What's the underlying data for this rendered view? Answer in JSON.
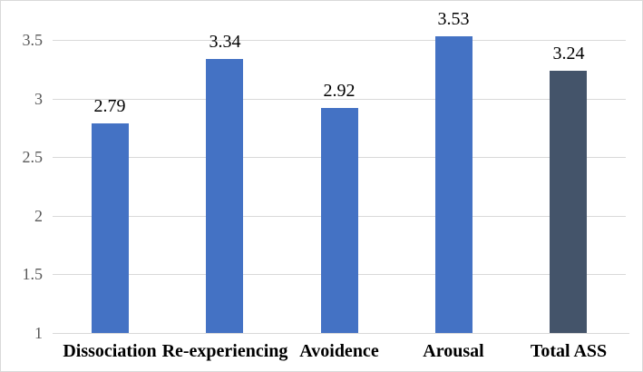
{
  "chart_data": {
    "type": "bar",
    "categories": [
      "Dissociation",
      "Re-experiencing",
      "Avoidence",
      "Arousal",
      "Total ASS"
    ],
    "values": [
      2.79,
      3.34,
      2.92,
      3.53,
      3.24
    ],
    "data_labels": [
      "2.79",
      "3.34",
      "2.92",
      "3.53",
      "3.24"
    ],
    "bar_colors": [
      "#4472C4",
      "#4472C4",
      "#4472C4",
      "#4472C4",
      "#44546A"
    ],
    "yticks": [
      1,
      1.5,
      2,
      2.5,
      3,
      3.5
    ],
    "ytick_labels": [
      "1",
      "1.5",
      "2",
      "2.5",
      "3",
      "3.5"
    ],
    "ylim": [
      1,
      3.5
    ],
    "grid": "horizontal",
    "legend": "none",
    "colors": {
      "bar_primary": "#4472C4",
      "bar_total": "#44546A",
      "gridline": "#D9D9D9",
      "axis_line": "#D9D9D9",
      "tick_label": "#595959",
      "data_label": "#000000",
      "category_label": "#000000",
      "border": "#D9D9D9",
      "background": "#FFFFFF"
    }
  }
}
